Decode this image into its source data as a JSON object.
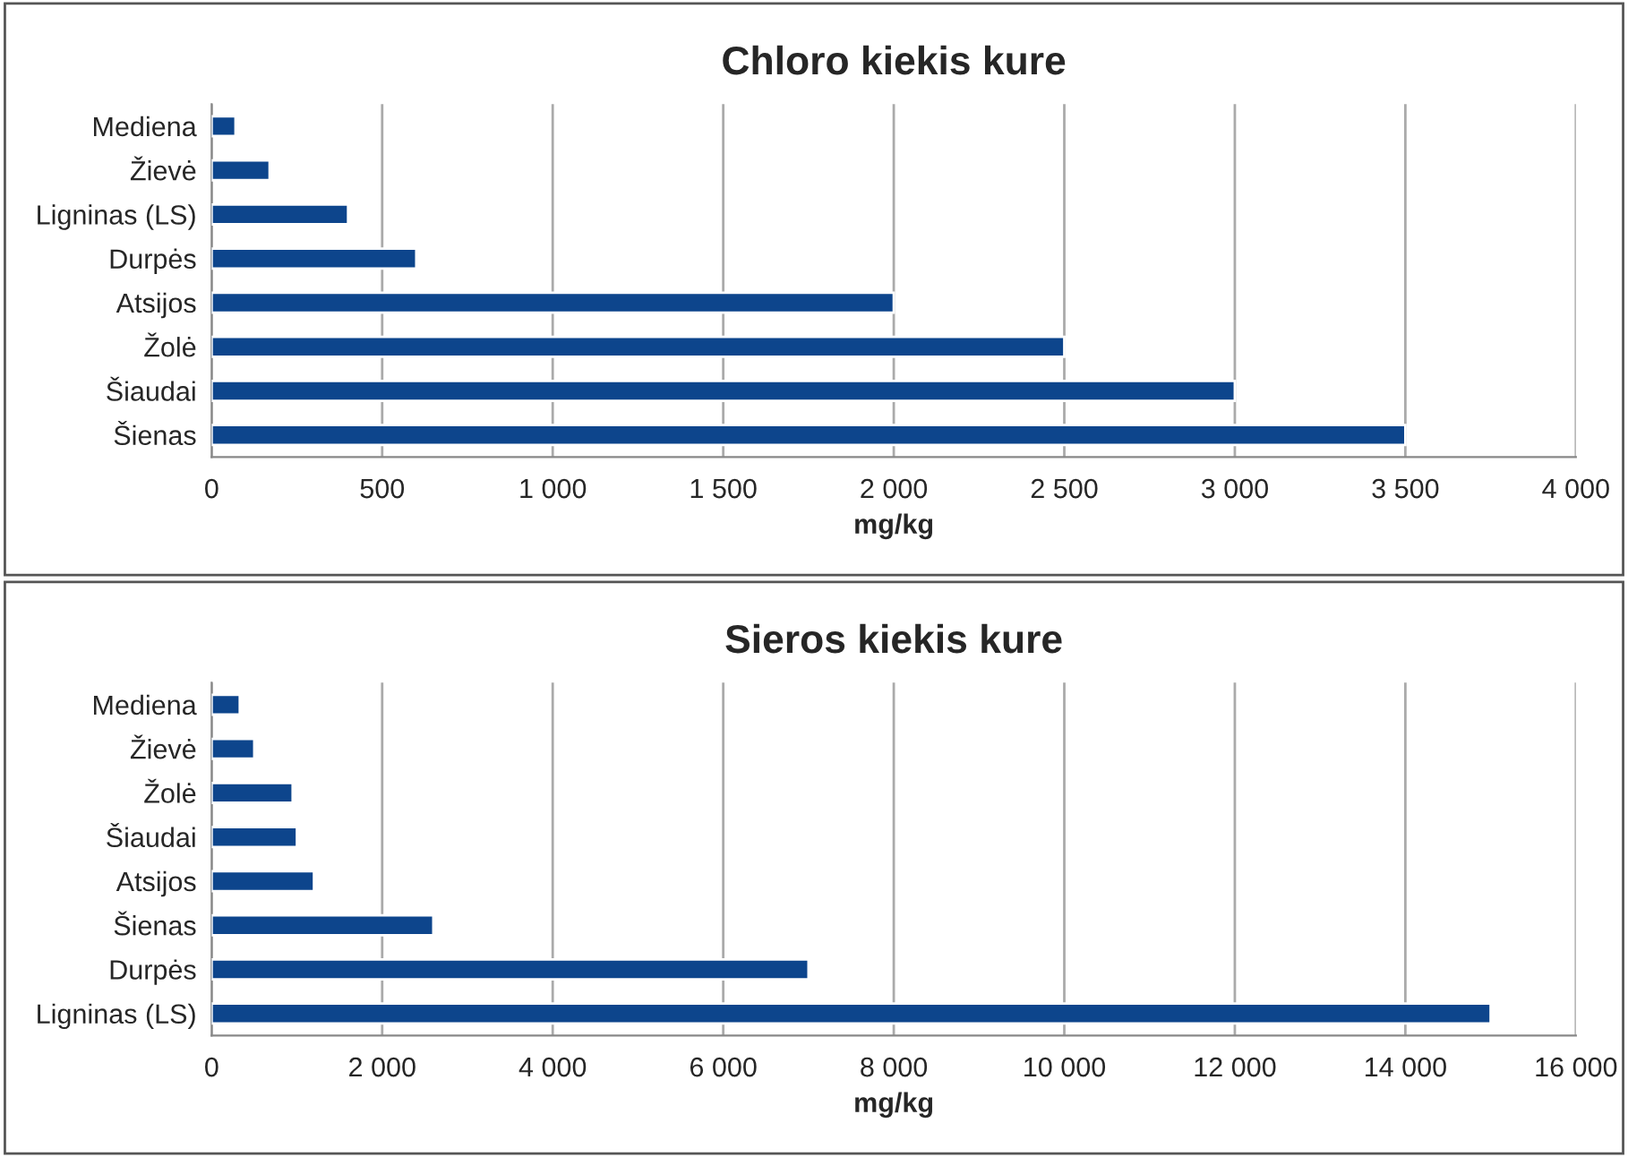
{
  "chart_data": [
    {
      "type": "bar",
      "orientation": "horizontal",
      "title": "Chloro kiekis kure",
      "xlabel": "mg/kg",
      "categories": [
        "Mediena",
        "Žievė",
        "Ligninas (LS)",
        "Durpės",
        "Atsijos",
        "Žolė",
        "Šiaudai",
        "Šienas"
      ],
      "values": [
        70,
        170,
        400,
        600,
        2000,
        2500,
        3000,
        3500
      ],
      "color": "#0d458c",
      "xlim": [
        0,
        4000
      ],
      "xticks": [
        0,
        500,
        {
          "value": 1000,
          "label": "1 000"
        },
        {
          "value": 1500,
          "label": "1 500"
        },
        {
          "value": 2000,
          "label": "2 000"
        },
        {
          "value": 2500,
          "label": "2 500"
        },
        {
          "value": 3000,
          "label": "3 000"
        },
        {
          "value": 3500,
          "label": "3 500"
        },
        {
          "value": 4000,
          "label": "4 000"
        }
      ],
      "grid": "x"
    },
    {
      "type": "bar",
      "orientation": "horizontal",
      "title": "Sieros kiekis kure",
      "xlabel": "mg/kg",
      "categories": [
        "Mediena",
        "Žievė",
        "Žolė",
        "Šiaudai",
        "Atsijos",
        "Šienas",
        "Durpės",
        "Ligninas (LS)"
      ],
      "values": [
        330,
        500,
        950,
        1000,
        1200,
        2600,
        7000,
        15000
      ],
      "color": "#0d458c",
      "xlim": [
        0,
        16000
      ],
      "xticks": [
        0,
        {
          "value": 2000,
          "label": "2 000"
        },
        {
          "value": 4000,
          "label": "4 000"
        },
        {
          "value": 6000,
          "label": "6 000"
        },
        {
          "value": 8000,
          "label": "8 000"
        },
        {
          "value": 10000,
          "label": "10 000"
        },
        {
          "value": 12000,
          "label": "12 000"
        },
        {
          "value": 14000,
          "label": "14 000"
        },
        {
          "value": 16000,
          "label": "16 000"
        }
      ],
      "grid": "x"
    }
  ]
}
